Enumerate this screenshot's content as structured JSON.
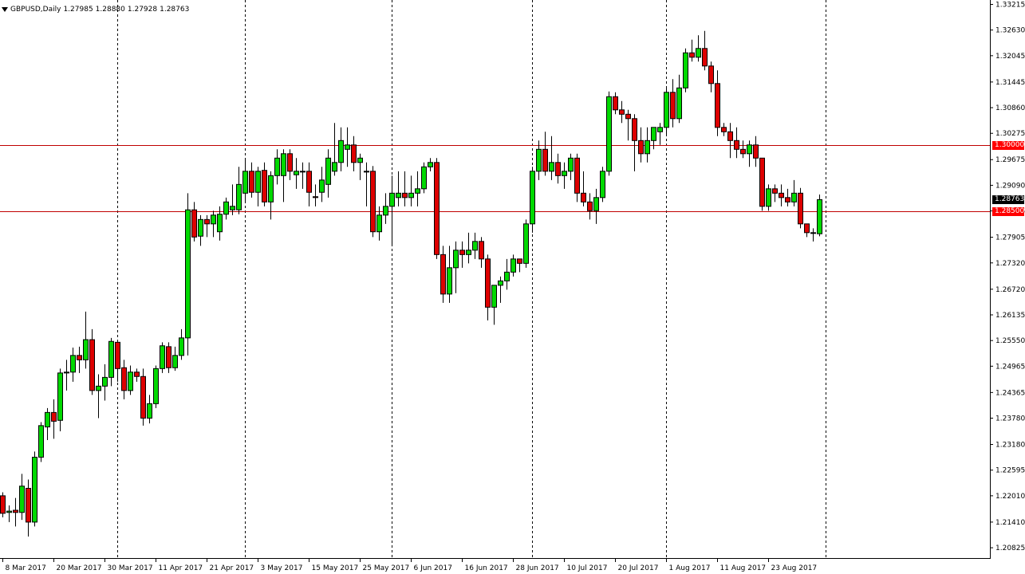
{
  "header": {
    "symbol_timeframe": "GBPUSD,Daily",
    "ohlc": [
      "1.27985",
      "1.28880",
      "1.27928",
      "1.28763"
    ]
  },
  "price_labels": {
    "current": "1.28763",
    "level_upper": "1.30000",
    "level_lower": "1.28500"
  },
  "colors": {
    "bull": "#00d900",
    "bear": "#dd0000",
    "wick": "#000000",
    "level_line": "#c00000",
    "current_label_bg": "#000000",
    "level_label_bg": "#ff0000",
    "grid_separator": "#000000"
  },
  "chart_data": {
    "type": "candlestick",
    "symbol": "GBPUSD",
    "timeframe": "Daily",
    "ylim": [
      1.2059,
      1.33315
    ],
    "y_ticks": [
      1.33215,
      1.3263,
      1.32045,
      1.31445,
      1.3086,
      1.30275,
      1.29675,
      1.2909,
      1.28505,
      1.27905,
      1.2732,
      1.2672,
      1.26135,
      1.2555,
      1.24965,
      1.24365,
      1.2378,
      1.2318,
      1.22595,
      1.2201,
      1.2141,
      1.20825
    ],
    "y_tick_labels": [
      "1.33215",
      "1.32630",
      "1.32045",
      "1.31445",
      "1.30860",
      "1.30275",
      "1.29675",
      "1.29090",
      "1.28505",
      "1.27905",
      "1.27320",
      "1.26720",
      "1.26135",
      "1.25550",
      "1.24965",
      "1.24365",
      "1.23780",
      "1.23180",
      "1.22595",
      "1.22010",
      "1.21410",
      "1.20825"
    ],
    "x_tick_labels": [
      "8 Mar 2017",
      "20 Mar 2017",
      "30 Mar 2017",
      "11 Apr 2017",
      "21 Apr 2017",
      "3 May 2017",
      "15 May 2017",
      "25 May 2017",
      "6 Jun 2017",
      "16 Jun 2017",
      "28 Jun 2017",
      "10 Jul 2017",
      "20 Jul 2017",
      "1 Aug 2017",
      "11 Aug 2017",
      "23 Aug 2017"
    ],
    "x_tick_bar_index": [
      0,
      8,
      16,
      24,
      32,
      40,
      48,
      56,
      64,
      72,
      80,
      88,
      96,
      104,
      112,
      120
    ],
    "separator_bar_index": [
      18,
      38,
      61,
      83,
      104,
      129
    ],
    "horizontal_levels": [
      1.3,
      1.285
    ],
    "current_price": 1.28763,
    "ohlc": [
      [
        1.2201,
        1.2209,
        1.2152,
        1.2161
      ],
      [
        1.2163,
        1.2179,
        1.2141,
        1.2166
      ],
      [
        1.2168,
        1.2196,
        1.2131,
        1.2163
      ],
      [
        1.2163,
        1.2251,
        1.2146,
        1.2223
      ],
      [
        1.2218,
        1.2238,
        1.2108,
        1.2141
      ],
      [
        1.2141,
        1.2302,
        1.2131,
        1.2289
      ],
      [
        1.2289,
        1.2369,
        1.2278,
        1.2361
      ],
      [
        1.2358,
        1.2401,
        1.2328,
        1.2391
      ],
      [
        1.2391,
        1.2421,
        1.2331,
        1.2371
      ],
      [
        1.2373,
        1.2491,
        1.2348,
        1.2481
      ],
      [
        1.2481,
        1.2511,
        1.2441,
        1.2483
      ],
      [
        1.2483,
        1.2539,
        1.2461,
        1.2521
      ],
      [
        1.2521,
        1.2541,
        1.2481,
        1.2511
      ],
      [
        1.2511,
        1.2621,
        1.2491,
        1.2557
      ],
      [
        1.2557,
        1.2581,
        1.2431,
        1.2441
      ],
      [
        1.2441,
        1.2478,
        1.2378,
        1.2451
      ],
      [
        1.2451,
        1.2501,
        1.2418,
        1.2471
      ],
      [
        1.2471,
        1.2561,
        1.2451,
        1.2553
      ],
      [
        1.2551,
        1.2556,
        1.2461,
        1.2491
      ],
      [
        1.2493,
        1.2511,
        1.2421,
        1.2441
      ],
      [
        1.2441,
        1.2498,
        1.2431,
        1.2483
      ],
      [
        1.2483,
        1.2491,
        1.2461,
        1.2473
      ],
      [
        1.2473,
        1.2491,
        1.2361,
        1.2378
      ],
      [
        1.2378,
        1.2431,
        1.2366,
        1.2411
      ],
      [
        1.2411,
        1.2498,
        1.2401,
        1.2491
      ],
      [
        1.2491,
        1.2551,
        1.2481,
        1.2543
      ],
      [
        1.2541,
        1.2551,
        1.2481,
        1.2493
      ],
      [
        1.2493,
        1.2541,
        1.2486,
        1.2521
      ],
      [
        1.2521,
        1.2581,
        1.2511,
        1.2561
      ],
      [
        1.2561,
        1.2891,
        1.2521,
        1.2853
      ],
      [
        1.2853,
        1.2871,
        1.2781,
        1.2791
      ],
      [
        1.2793,
        1.2841,
        1.2771,
        1.2831
      ],
      [
        1.2831,
        1.2841,
        1.2791,
        1.2821
      ],
      [
        1.2821,
        1.2851,
        1.2791,
        1.2841
      ],
      [
        1.2803,
        1.2861,
        1.2783,
        1.2843
      ],
      [
        1.2843,
        1.2881,
        1.2831,
        1.2871
      ],
      [
        1.2853,
        1.2911,
        1.2841,
        1.2861
      ],
      [
        1.2853,
        1.2951,
        1.2843,
        1.2911
      ],
      [
        1.2891,
        1.2971,
        1.2871,
        1.2941
      ],
      [
        1.2941,
        1.2961,
        1.2881,
        1.2893
      ],
      [
        1.2893,
        1.2951,
        1.2861,
        1.2941
      ],
      [
        1.2943,
        1.2961,
        1.2861,
        1.2871
      ],
      [
        1.2871,
        1.2941,
        1.2831,
        1.2931
      ],
      [
        1.2931,
        1.2991,
        1.2911,
        1.2971
      ],
      [
        1.2931,
        1.2991,
        1.2871,
        1.2981
      ],
      [
        1.2981,
        1.2991,
        1.2921,
        1.2941
      ],
      [
        1.2933,
        1.2971,
        1.2901,
        1.2941
      ],
      [
        1.2941,
        1.2961,
        1.2901,
        1.2941
      ],
      [
        1.2941,
        1.2961,
        1.2861,
        1.2893
      ],
      [
        1.2883,
        1.2911,
        1.2861,
        1.2881
      ],
      [
        1.2893,
        1.2951,
        1.2871,
        1.2921
      ],
      [
        1.2911,
        1.2991,
        1.2881,
        1.2971
      ],
      [
        1.2941,
        1.3051,
        1.2931,
        1.2961
      ],
      [
        1.2961,
        1.3041,
        1.2941,
        1.3011
      ],
      [
        1.2991,
        1.3041,
        1.2951,
        1.3001
      ],
      [
        1.3001,
        1.3021,
        1.2941,
        1.2961
      ],
      [
        1.2961,
        1.2981,
        1.2921,
        1.2971
      ],
      [
        1.2941,
        1.2961,
        1.2861,
        1.2941
      ],
      [
        1.2941,
        1.2953,
        1.2791,
        1.2803
      ],
      [
        1.2803,
        1.2861,
        1.2783,
        1.2841
      ],
      [
        1.2841,
        1.2891,
        1.2821,
        1.2861
      ],
      [
        1.2861,
        1.2931,
        1.2771,
        1.2891
      ],
      [
        1.2881,
        1.2941,
        1.2861,
        1.2891
      ],
      [
        1.2891,
        1.2941,
        1.2861,
        1.2881
      ],
      [
        1.2881,
        1.2931,
        1.2861,
        1.2891
      ],
      [
        1.2891,
        1.2941,
        1.2861,
        1.2901
      ],
      [
        1.2901,
        1.2961,
        1.2891,
        1.2951
      ],
      [
        1.2951,
        1.2971,
        1.2941,
        1.2961
      ],
      [
        1.2961,
        1.2971,
        1.2741,
        1.2751
      ],
      [
        1.2751,
        1.2771,
        1.2641,
        1.2661
      ],
      [
        1.2661,
        1.2771,
        1.2641,
        1.2721
      ],
      [
        1.2721,
        1.2781,
        1.2663,
        1.2761
      ],
      [
        1.2761,
        1.2781,
        1.2721,
        1.2751
      ],
      [
        1.2751,
        1.2801,
        1.2731,
        1.2761
      ],
      [
        1.2761,
        1.2801,
        1.2741,
        1.2781
      ],
      [
        1.2781,
        1.2791,
        1.2721,
        1.2741
      ],
      [
        1.2741,
        1.2751,
        1.2601,
        1.2631
      ],
      [
        1.2631,
        1.2681,
        1.2591,
        1.2681
      ],
      [
        1.2681,
        1.2701,
        1.2641,
        1.2691
      ],
      [
        1.2691,
        1.2741,
        1.2671,
        1.2711
      ],
      [
        1.2711,
        1.2751,
        1.2701,
        1.2741
      ],
      [
        1.2741,
        1.2741,
        1.2711,
        1.2731
      ],
      [
        1.2731,
        1.2831,
        1.2721,
        1.2821
      ],
      [
        1.2821,
        1.2951,
        1.2801,
        1.2941
      ],
      [
        1.2941,
        1.3011,
        1.2921,
        1.2991
      ],
      [
        1.2991,
        1.3031,
        1.2931,
        1.2941
      ],
      [
        1.2941,
        1.3021,
        1.2921,
        1.2961
      ],
      [
        1.2961,
        1.2981,
        1.2913,
        1.2931
      ],
      [
        1.2931,
        1.2961,
        1.2901,
        1.2941
      ],
      [
        1.2941,
        1.2981,
        1.2921,
        1.2971
      ],
      [
        1.2971,
        1.2981,
        1.2871,
        1.2891
      ],
      [
        1.2891,
        1.2941,
        1.2861,
        1.2871
      ],
      [
        1.2871,
        1.2891,
        1.2831,
        1.2851
      ],
      [
        1.2851,
        1.2901,
        1.2821,
        1.2881
      ],
      [
        1.2881,
        1.2951,
        1.2871,
        1.2941
      ],
      [
        1.2941,
        1.3123,
        1.2931,
        1.3111
      ],
      [
        1.3111,
        1.3121,
        1.3071,
        1.3081
      ],
      [
        1.3081,
        1.3101,
        1.3051,
        1.3071
      ],
      [
        1.3071,
        1.3081,
        1.3011,
        1.3061
      ],
      [
        1.3061,
        1.3071,
        1.2941,
        1.3011
      ],
      [
        1.3011,
        1.3041,
        1.2961,
        1.2981
      ],
      [
        1.2981,
        1.3041,
        1.2961,
        1.3011
      ],
      [
        1.3011,
        1.3041,
        1.2991,
        1.3041
      ],
      [
        1.3031,
        1.3051,
        1.3001,
        1.3041
      ],
      [
        1.3041,
        1.3131,
        1.3021,
        1.3121
      ],
      [
        1.3121,
        1.3151,
        1.3041,
        1.3061
      ],
      [
        1.3061,
        1.3161,
        1.3051,
        1.3131
      ],
      [
        1.3131,
        1.3221,
        1.3121,
        1.3211
      ],
      [
        1.3211,
        1.3241,
        1.3191,
        1.3201
      ],
      [
        1.3201,
        1.3251,
        1.3191,
        1.3221
      ],
      [
        1.3221,
        1.3261,
        1.3171,
        1.3181
      ],
      [
        1.3181,
        1.3191,
        1.3121,
        1.3141
      ],
      [
        1.3141,
        1.3171,
        1.3021,
        1.3041
      ],
      [
        1.3041,
        1.3051,
        1.3021,
        1.3031
      ],
      [
        1.3031,
        1.3051,
        1.2971,
        1.3011
      ],
      [
        1.3011,
        1.3041,
        1.2971,
        1.2991
      ],
      [
        1.2991,
        1.3011,
        1.2971,
        1.2981
      ],
      [
        1.2981,
        1.3011,
        1.2951,
        1.3001
      ],
      [
        1.3001,
        1.3021,
        1.2951,
        1.2971
      ],
      [
        1.2971,
        1.2971,
        1.2851,
        1.2861
      ],
      [
        1.2861,
        1.2911,
        1.2851,
        1.2901
      ],
      [
        1.2901,
        1.2911,
        1.2871,
        1.2891
      ],
      [
        1.2891,
        1.2911,
        1.2861,
        1.2881
      ],
      [
        1.2881,
        1.2901,
        1.2861,
        1.2871
      ],
      [
        1.2871,
        1.2921,
        1.2861,
        1.2891
      ],
      [
        1.2891,
        1.2903,
        1.2811,
        1.2821
      ],
      [
        1.2821,
        1.2821,
        1.2791,
        1.2801
      ],
      [
        1.2801,
        1.2811,
        1.2781,
        1.2801
      ],
      [
        1.27985,
        1.2888,
        1.27928,
        1.28763
      ]
    ]
  }
}
